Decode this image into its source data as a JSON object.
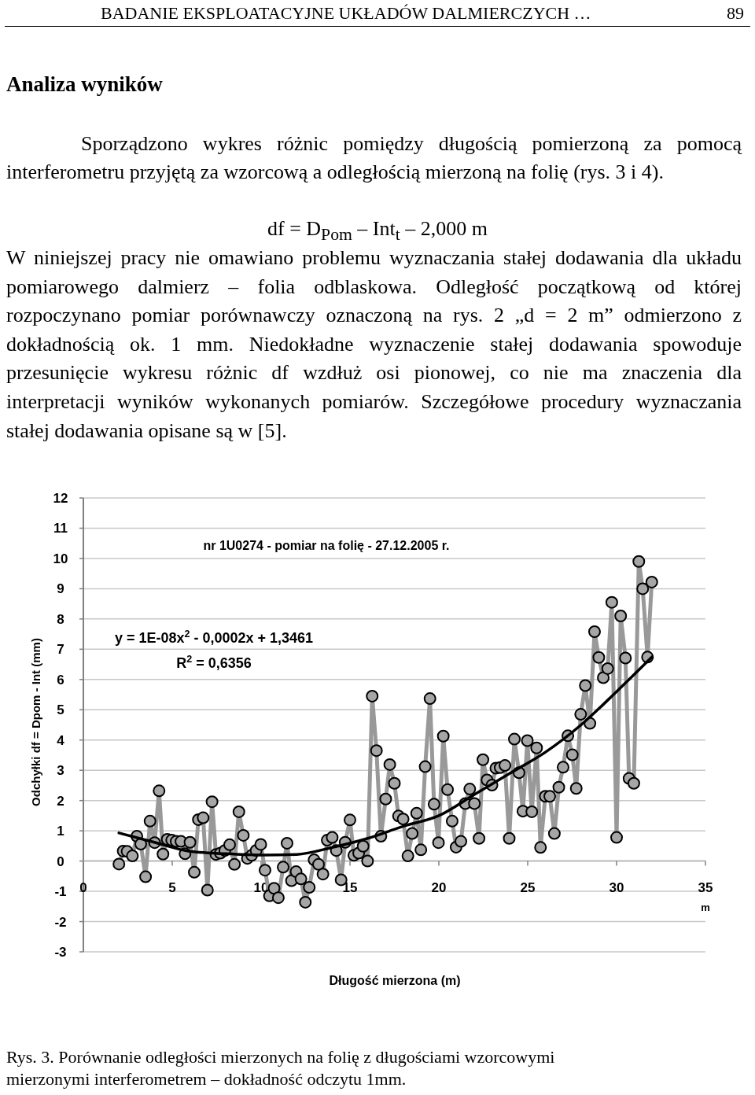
{
  "chart_data": {
    "type": "line",
    "title": "nr 1U0274 - pomiar na folię - 27.12.2005 r.",
    "xlabel": "Długość mierzona (m)",
    "ylabel": "Odchyłki df = Dpom - Int (mm)",
    "annotations": [
      "BADANIE EKSPLOATACYJNE UKŁADÓW DALMIERCZYCH …",
      "89",
      "Analiza wyników",
      "Sporządzono wykres różnic pomiędzy długością pomierzoną za pomocą interferometru przyjętą za wzorcową a odległością mierzoną na folię (rys. 3 i 4).",
      "df = D$_{Pom}$ – Int$_{t}$ – 2,000 m",
      "W niniejszej pracy nie omawiano problemu wyznaczania stałej dodawania dla układu pomiarowego dalmierz – folia odblaskowa. Odległość początkową od której rozpoczynano pomiar porównawczy oznaczoną na rys. 2 „d = 2 m” odmierzono z dokładnością ok. 1 mm. Niedokładne wyznaczenie stałej dodawania spowoduje przesunięcie wykresu różnic df wzdłuż osi pionowej, co nie ma znaczenia dla interpretacji wyników wykonanych pomiarów. Szczegółowe procedury wyznaczania stałej dodawania opisane są w [5].",
      "m",
      "y = 1E-08x$^{2}$ - 0,0002x + 1,3461",
      "R$^{2}$ = 0,6356",
      "Rys. 3. Porównanie odległości mierzonych na folię z długościami wzorcowymi mierzonymi interferometrem – dokładność odczytu 1mm."
    ],
    "xlim": [
      0,
      35
    ],
    "xticks": [
      0,
      5,
      10,
      15,
      20,
      25,
      30,
      35
    ],
    "ylim": [
      -3,
      12
    ],
    "yticks": [
      -3,
      -2,
      -1,
      0,
      1,
      2,
      3,
      4,
      5,
      6,
      7,
      8,
      9,
      10,
      11,
      12
    ],
    "grid": "y",
    "series": [
      {
        "color": "#999999",
        "marker": "circle",
        "x": [
          2.0,
          2.24,
          2.46,
          2.76,
          3.01,
          3.23,
          3.5,
          3.75,
          4.01,
          4.26,
          4.48,
          4.72,
          4.97,
          5.22,
          5.49,
          5.72,
          6.0,
          6.24,
          6.47,
          6.74,
          6.98,
          7.24,
          7.46,
          7.71,
          7.96,
          8.23,
          8.5,
          8.75,
          9.0,
          9.23,
          9.47,
          9.72,
          9.98,
          10.22,
          10.47,
          10.73,
          10.97,
          11.24,
          11.46,
          11.71,
          11.97,
          12.24,
          12.49,
          12.71,
          12.98,
          13.23,
          13.48,
          13.72,
          14.0,
          14.23,
          14.5,
          14.73,
          15.0,
          15.22,
          15.49,
          15.74,
          15.99,
          16.25,
          16.49,
          16.74,
          17.01,
          17.24,
          17.5,
          17.73,
          17.99,
          18.26,
          18.5,
          18.75,
          18.99,
          19.23,
          19.5,
          19.73,
          19.98,
          20.25,
          20.49,
          20.75,
          20.97,
          21.24,
          21.49,
          21.74,
          22.0,
          22.26,
          22.48,
          22.71,
          22.99,
          23.21,
          23.45,
          23.72,
          23.96,
          24.25,
          24.51,
          24.73,
          24.98,
          25.23,
          25.5,
          25.72,
          25.99,
          26.24,
          26.5,
          26.75,
          26.99,
          27.26,
          27.51,
          27.73,
          27.98,
          28.24,
          28.5,
          28.76,
          29.0,
          29.25,
          29.5,
          29.73,
          30.0,
          30.23,
          30.5,
          30.7,
          30.97,
          31.25,
          31.47,
          31.74,
          31.98
        ],
        "values": [
          -0.1,
          0.33,
          0.32,
          0.17,
          0.82,
          0.56,
          -0.52,
          1.32,
          0.61,
          2.32,
          0.23,
          0.72,
          0.69,
          0.65,
          0.65,
          0.24,
          0.62,
          -0.37,
          1.37,
          1.43,
          -0.96,
          1.96,
          0.22,
          0.26,
          0.35,
          0.54,
          -0.11,
          1.63,
          0.85,
          0.09,
          0.19,
          0.35,
          0.55,
          -0.3,
          -1.15,
          -0.9,
          -1.21,
          -0.2,
          0.59,
          -0.65,
          -0.35,
          -0.59,
          -1.36,
          -0.87,
          0.04,
          -0.11,
          -0.43,
          0.69,
          0.78,
          0.35,
          -0.62,
          0.62,
          1.36,
          0.19,
          0.26,
          0.49,
          0.0,
          5.45,
          3.65,
          0.82,
          2.05,
          3.19,
          2.57,
          1.49,
          1.39,
          0.17,
          0.91,
          1.58,
          0.37,
          3.12,
          5.37,
          1.88,
          0.61,
          4.13,
          2.36,
          1.32,
          0.46,
          0.65,
          1.9,
          2.38,
          1.9,
          0.75,
          3.35,
          2.68,
          2.51,
          3.07,
          3.09,
          3.16,
          0.75,
          4.03,
          2.92,
          1.65,
          3.98,
          1.63,
          3.74,
          0.45,
          2.14,
          2.14,
          0.91,
          2.44,
          3.1,
          4.14,
          3.51,
          2.4,
          4.85,
          5.8,
          4.55,
          7.58,
          6.73,
          6.06,
          6.36,
          8.55,
          0.78,
          8.1,
          6.71,
          2.73,
          2.57,
          9.9,
          9.0,
          6.74,
          9.22
        ]
      },
      {
        "color": "#000000",
        "marker": "none",
        "x": [
          2,
          4,
          6,
          8,
          10,
          12,
          14,
          16,
          18,
          20,
          22,
          24,
          26,
          28,
          30,
          32
        ],
        "values": [
          0.93,
          0.62,
          0.32,
          0.24,
          0.2,
          0.22,
          0.45,
          0.75,
          1.15,
          1.5,
          2.2,
          2.9,
          3.6,
          4.5,
          5.6,
          6.75
        ]
      }
    ]
  }
}
